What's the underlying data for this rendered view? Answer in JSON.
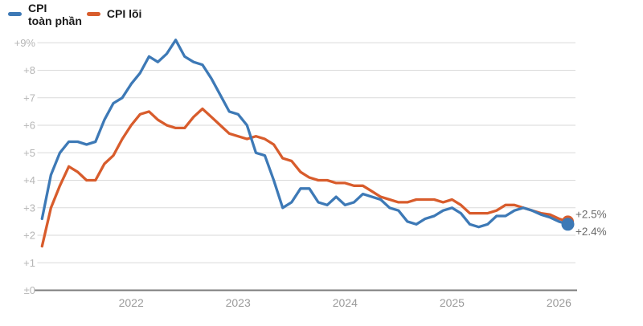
{
  "legend": {
    "items": [
      {
        "line1": "CPI",
        "line2": "toàn phần"
      },
      {
        "line1": "CPI lõi",
        "line2": ""
      }
    ]
  },
  "chart_data": {
    "type": "line",
    "title": "",
    "unit": "percent change year-over-year",
    "grid": "horizontal",
    "legend_position": "top-left",
    "x": {
      "start": "2021-03",
      "end": "2026-02",
      "frequency": "monthly",
      "tick_labels": [
        "2022",
        "2023",
        "2024",
        "2025",
        "2026"
      ],
      "tick_month_indices": [
        10,
        22,
        34,
        46,
        58
      ]
    },
    "y": {
      "min": 0,
      "max": 9,
      "ticks": [
        {
          "value": 9,
          "label": "+9%"
        },
        {
          "value": 8,
          "label": "+8"
        },
        {
          "value": 7,
          "label": "+7"
        },
        {
          "value": 6,
          "label": "+6"
        },
        {
          "value": 5,
          "label": "+5"
        },
        {
          "value": 4,
          "label": "+4"
        },
        {
          "value": 3,
          "label": "+3"
        },
        {
          "value": 2,
          "label": "+2"
        },
        {
          "value": 1,
          "label": "+1"
        },
        {
          "value": 0,
          "label": "±0"
        }
      ]
    },
    "series": [
      {
        "name": "CPI toàn phần",
        "color": "#3d79b6",
        "end_label": "+2.4%",
        "end_dot_radius": 8,
        "values": [
          2.6,
          4.2,
          5.0,
          5.4,
          5.4,
          5.3,
          5.4,
          6.2,
          6.8,
          7.0,
          7.5,
          7.9,
          8.5,
          8.3,
          8.6,
          9.1,
          8.5,
          8.3,
          8.2,
          7.7,
          7.1,
          6.5,
          6.4,
          6.0,
          5.0,
          4.9,
          4.0,
          3.0,
          3.2,
          3.7,
          3.7,
          3.2,
          3.1,
          3.4,
          3.1,
          3.2,
          3.5,
          3.4,
          3.3,
          3.0,
          2.9,
          2.5,
          2.4,
          2.6,
          2.7,
          2.9,
          3.0,
          2.8,
          2.4,
          2.3,
          2.4,
          2.7,
          2.7,
          2.9,
          3.0,
          2.9,
          2.75,
          2.65,
          2.5,
          2.4
        ]
      },
      {
        "name": "CPI lõi",
        "color": "#d85c2c",
        "end_label": "+2.5%",
        "end_dot_radius": 7.5,
        "values": [
          1.6,
          3.0,
          3.8,
          4.5,
          4.3,
          4.0,
          4.0,
          4.6,
          4.9,
          5.5,
          6.0,
          6.4,
          6.5,
          6.2,
          6.0,
          5.9,
          5.9,
          6.3,
          6.6,
          6.3,
          6.0,
          5.7,
          5.6,
          5.5,
          5.6,
          5.5,
          5.3,
          4.8,
          4.7,
          4.3,
          4.1,
          4.0,
          4.0,
          3.9,
          3.9,
          3.8,
          3.8,
          3.6,
          3.4,
          3.3,
          3.2,
          3.2,
          3.3,
          3.3,
          3.3,
          3.2,
          3.3,
          3.1,
          2.8,
          2.8,
          2.8,
          2.9,
          3.1,
          3.1,
          3.0,
          2.9,
          2.8,
          2.75,
          2.6,
          2.5
        ]
      }
    ],
    "colors": {
      "grid": "#dadada",
      "zero_line": "#7c7c7c",
      "y_tick_text": "#b5b5b5",
      "x_tick_text": "#9b9b9b",
      "end_label_text": "#6b6b6b",
      "legend_text": "#1a1a1a"
    }
  }
}
